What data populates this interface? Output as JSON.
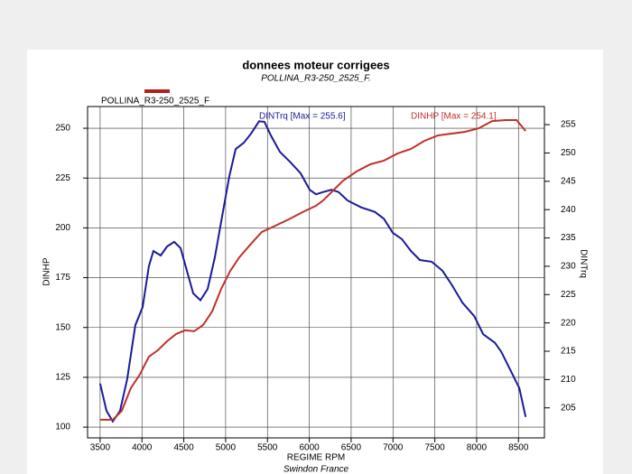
{
  "chart_data": {
    "type": "line",
    "title": "donnees moteur corrigees",
    "subtitle": "POLLINA_R3-250_2525_F.",
    "legend_label": "POLLINA_R3-250_2525_F",
    "legend_color": "#b02020",
    "x_label": "REGIME RPM",
    "y_label": "DINHP",
    "y2_label": "DINTrq",
    "footer": "Swindon France",
    "xlim": [
      3350,
      8810
    ],
    "ylim": [
      94.6,
      260.9
    ],
    "y2lim": [
      199.7,
      258.2
    ],
    "xticks": [
      3500,
      4000,
      4500,
      5000,
      5500,
      6000,
      6500,
      7000,
      7500,
      8000,
      8500
    ],
    "yticks": [
      100,
      125,
      150,
      175,
      200,
      225,
      250
    ],
    "y2ticks": [
      205,
      210,
      215,
      220,
      225,
      230,
      235,
      240,
      245,
      250,
      255
    ],
    "grid": true,
    "series": [
      {
        "name": "DINTrq  [Max = 255.6]",
        "color": "#1a1a9a",
        "axis": "y2",
        "x": [
          3500,
          3576,
          3651,
          3738,
          3824,
          3921,
          4008,
          4083,
          4137,
          4224,
          4300,
          4386,
          4461,
          4537,
          4613,
          4699,
          4785,
          4871,
          4958,
          5044,
          5120,
          5217,
          5303,
          5400,
          5464,
          5540,
          5648,
          5778,
          5897,
          6005,
          6080,
          6166,
          6264,
          6350,
          6458,
          6620,
          6782,
          6890,
          6998,
          7106,
          7214,
          7322,
          7462,
          7592,
          7700,
          7829,
          7970,
          8078,
          8218,
          8294,
          8402,
          8510,
          8586
        ],
        "values": [
          209.3,
          204.5,
          202.6,
          204.5,
          210.1,
          219.6,
          222.8,
          230.0,
          232.7,
          231.9,
          233.5,
          234.3,
          233.2,
          229.2,
          225.2,
          224.0,
          226.0,
          231.6,
          238.8,
          245.9,
          250.7,
          251.8,
          253.4,
          255.6,
          255.5,
          253.1,
          250.2,
          248.3,
          246.4,
          243.5,
          242.7,
          243.1,
          243.5,
          243.1,
          241.6,
          240.4,
          239.6,
          238.4,
          235.9,
          234.8,
          232.7,
          231.1,
          230.8,
          229.2,
          226.8,
          223.6,
          221.2,
          218.0,
          216.5,
          214.9,
          211.7,
          208.5,
          203.4
        ]
      },
      {
        "name": "DINHP  [Max = 254.1]",
        "color": "#c0302a",
        "axis": "y",
        "x": [
          3500,
          3651,
          3759,
          3867,
          3975,
          4083,
          4191,
          4300,
          4408,
          4515,
          4623,
          4731,
          4839,
          4947,
          5055,
          5163,
          5303,
          5432,
          5594,
          5756,
          5918,
          6080,
          6166,
          6296,
          6404,
          6566,
          6728,
          6890,
          7052,
          7214,
          7376,
          7538,
          7700,
          7862,
          8024,
          8186,
          8348,
          8478,
          8586
        ],
        "values": [
          103.7,
          103.7,
          108.2,
          119.6,
          126.4,
          135.4,
          138.6,
          143.1,
          146.7,
          148.6,
          148.1,
          151.3,
          158.1,
          169.4,
          178.4,
          185.2,
          192.0,
          197.9,
          201.1,
          204.3,
          207.9,
          211.1,
          213.8,
          219.2,
          223.7,
          228.3,
          231.9,
          233.7,
          237.3,
          239.6,
          243.7,
          246.4,
          247.3,
          248.2,
          250.0,
          253.6,
          254.1,
          254.1,
          248.6
        ]
      }
    ]
  }
}
